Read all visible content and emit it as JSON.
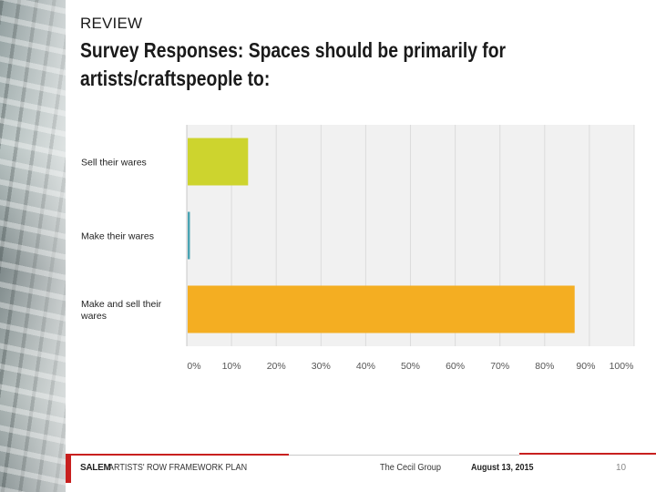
{
  "header": {
    "section_label": "REVIEW",
    "title": "Survey Responses: Spaces should be primarily for artists/craftspeople to:"
  },
  "chart_data": {
    "type": "bar",
    "orientation": "horizontal",
    "categories": [
      "Sell their wares",
      "Make their wares",
      "Make and sell their wares"
    ],
    "values": [
      13.5,
      0.5,
      86.5
    ],
    "colors": [
      "#cdd42e",
      "#4aa3b3",
      "#f4ae22"
    ],
    "x_ticks": [
      "0%",
      "10%",
      "20%",
      "30%",
      "40%",
      "50%",
      "60%",
      "70%",
      "80%",
      "90%",
      "100%"
    ],
    "xlim": [
      0,
      100
    ],
    "grid": true,
    "plot_background": "#f1f1f1"
  },
  "footer": {
    "brand": "SALEM",
    "subtitle": "ARTISTS' ROW FRAMEWORK PLAN",
    "firm": "The Cecil Group",
    "date": "August 13, 2015",
    "page": "10",
    "accent_color": "#c8201f"
  }
}
